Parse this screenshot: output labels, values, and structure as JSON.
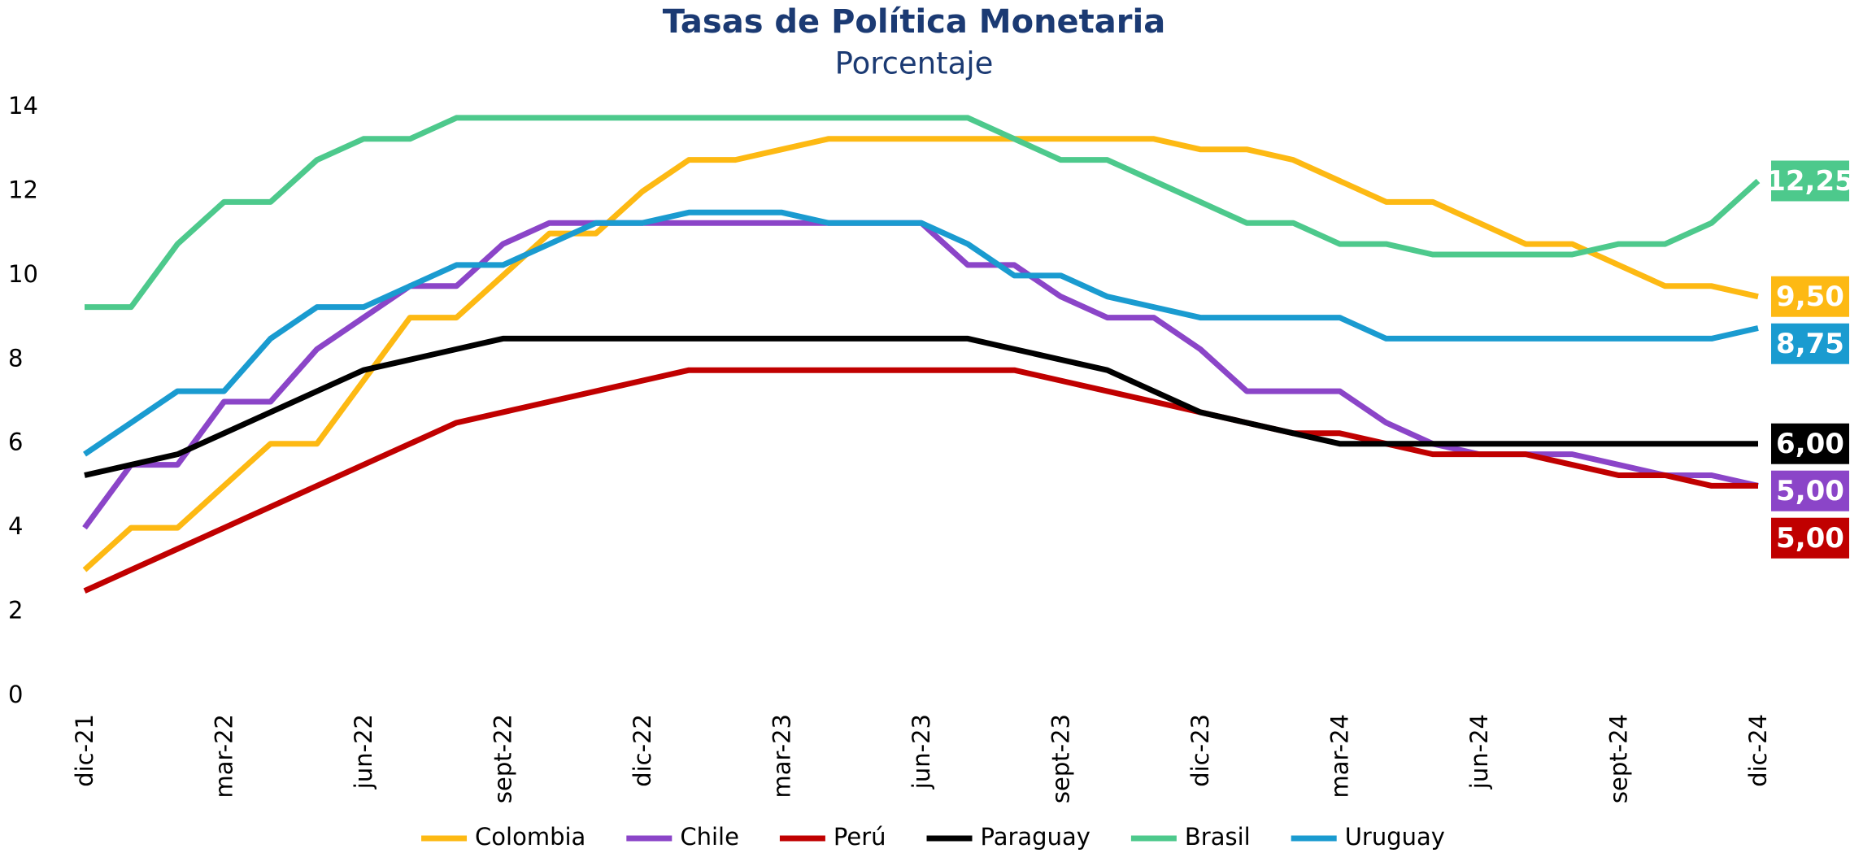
{
  "chart_data": {
    "type": "line",
    "title": "Tasas de Política Monetaria",
    "subtitle": "Porcentaje",
    "categories": [
      "dic-21",
      null,
      null,
      "mar-22",
      null,
      null,
      "jun-22",
      null,
      null,
      "sept-22",
      null,
      null,
      "dic-22",
      null,
      null,
      "mar-23",
      null,
      null,
      "jun-23",
      null,
      null,
      "sept-23",
      null,
      null,
      "dic-23",
      null,
      null,
      "mar-24",
      null,
      null,
      "jun-24",
      null,
      null,
      "sept-24",
      null,
      null,
      "dic-24"
    ],
    "ylim": [
      0,
      14
    ],
    "yticks": [
      0,
      2,
      4,
      6,
      8,
      10,
      12,
      14
    ],
    "grid": false,
    "legend": "bottom",
    "series": [
      {
        "name": "Colombia",
        "color": "#FDB913",
        "values": [
          3.0,
          4.0,
          4.0,
          5.0,
          6.0,
          6.0,
          7.5,
          9.0,
          9.0,
          10.0,
          11.0,
          11.0,
          12.0,
          12.75,
          12.75,
          13.0,
          13.25,
          13.25,
          13.25,
          13.25,
          13.25,
          13.25,
          13.25,
          13.25,
          13.0,
          13.0,
          12.75,
          12.25,
          11.75,
          11.75,
          11.25,
          10.75,
          10.75,
          10.25,
          9.75,
          9.75,
          9.5
        ],
        "value_labels": [
          null,
          null,
          null,
          null,
          null,
          null,
          null,
          null,
          null,
          null,
          null,
          null,
          null,
          null,
          null,
          null,
          null,
          null,
          null,
          null,
          null,
          null,
          null,
          null,
          null,
          null,
          null,
          null,
          null,
          null,
          null,
          null,
          null,
          null,
          null,
          null,
          "9,50"
        ]
      },
      {
        "name": "Chile",
        "color": "#8B45C8",
        "values": [
          4.0,
          5.5,
          5.5,
          7.0,
          7.0,
          8.25,
          9.0,
          9.75,
          9.75,
          10.75,
          11.25,
          11.25,
          11.25,
          11.25,
          11.25,
          11.25,
          11.25,
          11.25,
          11.25,
          10.25,
          10.25,
          9.5,
          9.0,
          9.0,
          8.25,
          7.25,
          7.25,
          7.25,
          6.5,
          6.0,
          5.75,
          5.75,
          5.75,
          5.5,
          5.25,
          5.25,
          5.0
        ],
        "value_labels": [
          null,
          null,
          null,
          null,
          null,
          null,
          null,
          null,
          null,
          null,
          null,
          null,
          null,
          null,
          null,
          null,
          null,
          null,
          null,
          null,
          null,
          null,
          null,
          null,
          null,
          null,
          null,
          null,
          null,
          null,
          null,
          null,
          null,
          null,
          null,
          null,
          "5,00"
        ]
      },
      {
        "name": "Perú",
        "color": "#C00000",
        "values": [
          2.5,
          3.0,
          3.5,
          4.0,
          4.5,
          5.0,
          5.5,
          6.0,
          6.5,
          6.75,
          7.0,
          7.25,
          7.5,
          7.75,
          7.75,
          7.75,
          7.75,
          7.75,
          7.75,
          7.75,
          7.75,
          7.5,
          7.25,
          7.0,
          6.75,
          6.5,
          6.25,
          6.25,
          6.0,
          5.75,
          5.75,
          5.75,
          5.5,
          5.25,
          5.25,
          5.0,
          5.0
        ],
        "value_labels": [
          null,
          null,
          null,
          null,
          null,
          null,
          null,
          null,
          null,
          null,
          null,
          null,
          null,
          null,
          null,
          null,
          null,
          null,
          null,
          null,
          null,
          null,
          null,
          null,
          null,
          null,
          null,
          null,
          null,
          null,
          null,
          null,
          null,
          null,
          null,
          null,
          "5,00"
        ]
      },
      {
        "name": "Paraguay",
        "color": "#000000",
        "values": [
          5.25,
          5.5,
          5.75,
          6.25,
          6.75,
          7.25,
          7.75,
          8.0,
          8.25,
          8.5,
          8.5,
          8.5,
          8.5,
          8.5,
          8.5,
          8.5,
          8.5,
          8.5,
          8.5,
          8.5,
          8.25,
          8.0,
          7.75,
          7.25,
          6.75,
          6.5,
          6.25,
          6.0,
          6.0,
          6.0,
          6.0,
          6.0,
          6.0,
          6.0,
          6.0,
          6.0,
          6.0
        ],
        "value_labels": [
          null,
          null,
          null,
          null,
          null,
          null,
          null,
          null,
          null,
          null,
          null,
          null,
          null,
          null,
          null,
          null,
          null,
          null,
          null,
          null,
          null,
          null,
          null,
          null,
          null,
          null,
          null,
          null,
          null,
          null,
          null,
          null,
          null,
          null,
          null,
          null,
          "6,00"
        ]
      },
      {
        "name": "Brasil",
        "color": "#4DC98C",
        "values": [
          9.25,
          9.25,
          10.75,
          11.75,
          11.75,
          12.75,
          13.25,
          13.25,
          13.75,
          13.75,
          13.75,
          13.75,
          13.75,
          13.75,
          13.75,
          13.75,
          13.75,
          13.75,
          13.75,
          13.75,
          13.25,
          12.75,
          12.75,
          12.25,
          11.75,
          11.25,
          11.25,
          10.75,
          10.75,
          10.5,
          10.5,
          10.5,
          10.5,
          10.75,
          10.75,
          11.25,
          12.25
        ],
        "value_labels": [
          null,
          null,
          null,
          null,
          null,
          null,
          null,
          null,
          null,
          null,
          null,
          null,
          null,
          null,
          null,
          null,
          null,
          null,
          null,
          null,
          null,
          null,
          null,
          null,
          null,
          null,
          null,
          null,
          null,
          null,
          null,
          null,
          null,
          null,
          null,
          null,
          "12,25"
        ]
      },
      {
        "name": "Uruguay",
        "color": "#1A9BD0",
        "values": [
          5.75,
          6.5,
          7.25,
          7.25,
          8.5,
          9.25,
          9.25,
          9.75,
          10.25,
          10.25,
          10.75,
          11.25,
          11.25,
          11.5,
          11.5,
          11.5,
          11.25,
          11.25,
          11.25,
          10.75,
          10.0,
          10.0,
          9.5,
          9.25,
          9.0,
          9.0,
          9.0,
          9.0,
          8.5,
          8.5,
          8.5,
          8.5,
          8.5,
          8.5,
          8.5,
          8.5,
          8.75
        ],
        "value_labels": [
          null,
          null,
          null,
          null,
          null,
          null,
          null,
          null,
          null,
          null,
          null,
          null,
          null,
          null,
          null,
          null,
          null,
          null,
          null,
          null,
          null,
          null,
          null,
          null,
          null,
          null,
          null,
          null,
          null,
          null,
          null,
          null,
          null,
          null,
          null,
          null,
          "8,75"
        ]
      }
    ]
  }
}
